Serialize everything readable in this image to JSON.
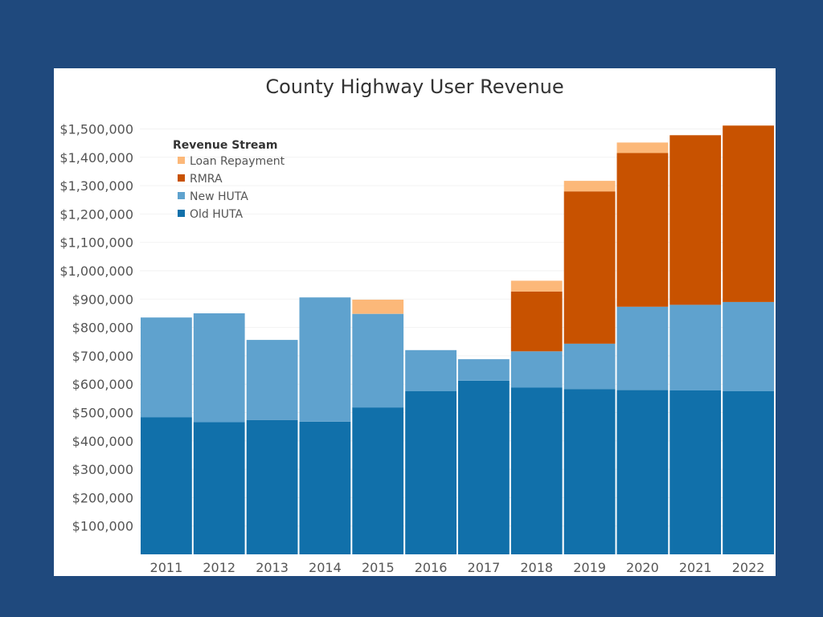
{
  "colors": {
    "background": "#1f497d",
    "panel": "#ffffff",
    "old_huta": "#1170aa",
    "new_huta": "#5fa2ce",
    "rmra": "#c85200",
    "loan_repayment": "#fcb879"
  },
  "chart_data": {
    "type": "bar",
    "stacked": true,
    "title": "County Highway User Revenue",
    "xlabel": "",
    "ylabel": "",
    "ylim": [
      0,
      1500000
    ],
    "y_ticks": [
      100000,
      200000,
      300000,
      400000,
      500000,
      600000,
      700000,
      800000,
      900000,
      1000000,
      1100000,
      1200000,
      1300000,
      1400000,
      1500000
    ],
    "y_tick_labels": [
      "$100,000",
      "$200,000",
      "$300,000",
      "$400,000",
      "$500,000",
      "$600,000",
      "$700,000",
      "$800,000",
      "$900,000",
      "$1,000,000",
      "$1,100,000",
      "$1,200,000",
      "$1,300,000",
      "$1,400,000",
      "$1,500,000"
    ],
    "categories": [
      "2011",
      "2012",
      "2013",
      "2014",
      "2015",
      "2016",
      "2017",
      "2018",
      "2019",
      "2020",
      "2021",
      "2022"
    ],
    "legend": {
      "title": "Revenue Stream",
      "placement": "top-left",
      "entries": [
        "Loan Repayment",
        "RMRA",
        "New HUTA",
        "Old HUTA"
      ]
    },
    "series": [
      {
        "name": "Old HUTA",
        "color_key": "old_huta",
        "values": [
          483000,
          466000,
          474000,
          468000,
          518000,
          575000,
          612000,
          588000,
          583000,
          580000,
          578000,
          575000
        ]
      },
      {
        "name": "New HUTA",
        "color_key": "new_huta",
        "values": [
          352000,
          384000,
          282000,
          438000,
          330000,
          145000,
          76000,
          128000,
          160000,
          293000,
          302000,
          315000
        ]
      },
      {
        "name": "RMRA",
        "color_key": "rmra",
        "values": [
          0,
          0,
          0,
          0,
          0,
          0,
          0,
          211000,
          537000,
          542000,
          598000,
          622000
        ]
      },
      {
        "name": "Loan Repayment",
        "color_key": "loan_repayment",
        "values": [
          0,
          0,
          0,
          0,
          50000,
          0,
          0,
          38000,
          37000,
          37000,
          0,
          0
        ]
      }
    ]
  }
}
